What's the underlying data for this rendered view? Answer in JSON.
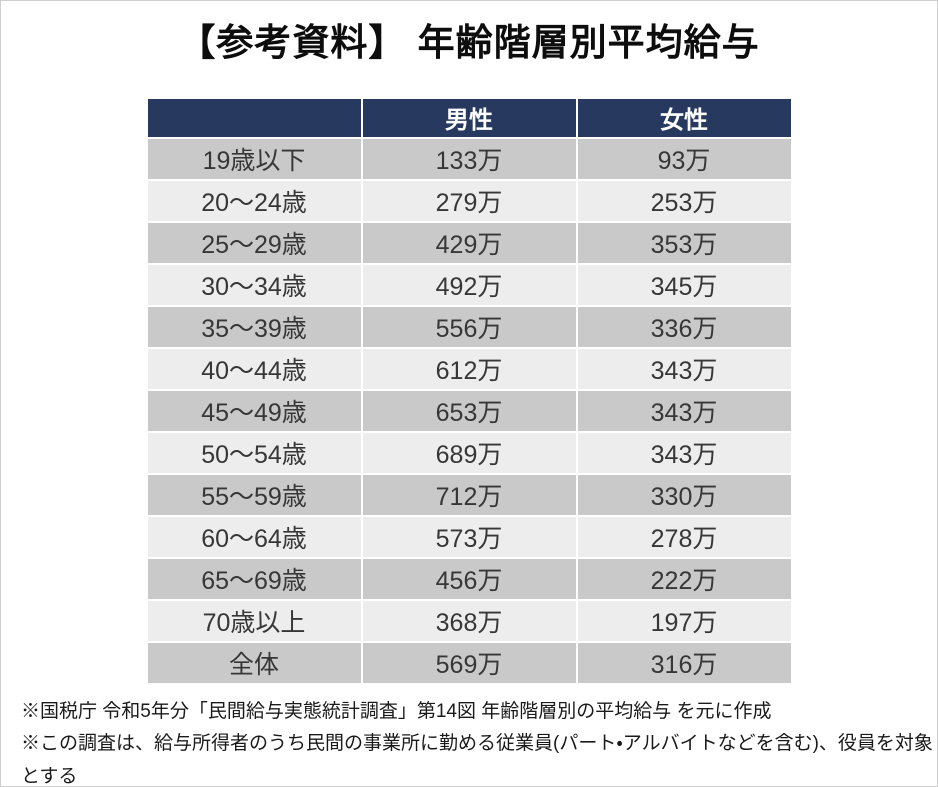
{
  "title": "【参考資料】 年齢階層別平均給与",
  "table": {
    "headers": [
      "",
      "男性",
      "女性"
    ],
    "rows": [
      {
        "age": "19歳以下",
        "male": "133万",
        "female": "93万"
      },
      {
        "age": "20〜24歳",
        "male": "279万",
        "female": "253万"
      },
      {
        "age": "25〜29歳",
        "male": "429万",
        "female": "353万"
      },
      {
        "age": "30〜34歳",
        "male": "492万",
        "female": "345万"
      },
      {
        "age": "35〜39歳",
        "male": "556万",
        "female": "336万"
      },
      {
        "age": "40〜44歳",
        "male": "612万",
        "female": "343万"
      },
      {
        "age": "45〜49歳",
        "male": "653万",
        "female": "343万"
      },
      {
        "age": "50〜54歳",
        "male": "689万",
        "female": "343万"
      },
      {
        "age": "55〜59歳",
        "male": "712万",
        "female": "330万"
      },
      {
        "age": "60〜64歳",
        "male": "573万",
        "female": "278万"
      },
      {
        "age": "65〜69歳",
        "male": "456万",
        "female": "222万"
      },
      {
        "age": "70歳以上",
        "male": "368万",
        "female": "197万"
      },
      {
        "age": "全体",
        "male": "569万",
        "female": "316万"
      }
    ]
  },
  "footnotes": [
    "※国税庁 令和5年分「民間給与実態統計調査」第14図 年齢階層別の平均給与 を元に作成",
    "※この調査は、給与所得者のうち民間の事業所に勤める従業員(パート・アルバイトなどを含む)、役員を対象とする"
  ],
  "colors": {
    "header_bg": "#27395F",
    "header_text": "#FFFFFF",
    "row_odd_bg": "#C9C9C9",
    "row_even_bg": "#EDEDED",
    "cell_text": "#373737",
    "title_text": "#0D0D0D"
  },
  "chart_data": {
    "type": "table",
    "title": "【参考資料】 年齢階層別平均給与",
    "columns": [
      "",
      "男性",
      "女性"
    ],
    "rows": [
      [
        "19歳以下",
        "133万",
        "93万"
      ],
      [
        "20〜24歳",
        "279万",
        "253万"
      ],
      [
        "25〜29歳",
        "429万",
        "353万"
      ],
      [
        "30〜34歳",
        "492万",
        "345万"
      ],
      [
        "35〜39歳",
        "556万",
        "336万"
      ],
      [
        "40〜44歳",
        "612万",
        "343万"
      ],
      [
        "45〜49歳",
        "653万",
        "343万"
      ],
      [
        "50〜54歳",
        "689万",
        "343万"
      ],
      [
        "55〜59歳",
        "712万",
        "330万"
      ],
      [
        "60〜64歳",
        "573万",
        "278万"
      ],
      [
        "65〜69歳",
        "456万",
        "222万"
      ],
      [
        "70歳以上",
        "368万",
        "197万"
      ],
      [
        "全体",
        "569万",
        "316万"
      ]
    ],
    "notes": [
      "※国税庁 令和5年分「民間給与実態統計調査」第14図 年齢階層別の平均給与 を元に作成",
      "※この調査は、給与所得者のうち民間の事業所に勤める従業員(パート・アルバイトなどを含む)、役員を対象とする"
    ]
  }
}
